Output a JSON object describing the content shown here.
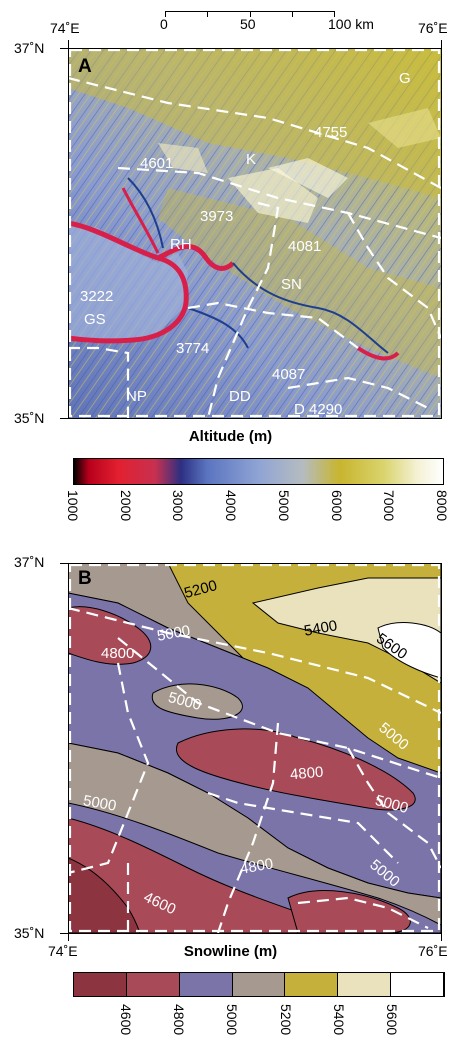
{
  "scalebar": {
    "t0": "0",
    "t50": "50",
    "t100": "100 km"
  },
  "panel_a": {
    "letter": "A",
    "lon_left": "74˚E",
    "lon_right": "76˚E",
    "lat_top": "37˚N",
    "lat_bottom": "35˚N",
    "labels": [
      "G",
      "4755",
      "K",
      "4601",
      "3973",
      "RH",
      "4081",
      "SN",
      "3222",
      "GS",
      "3774",
      "4087",
      "NP",
      "DD",
      "D 4290"
    ],
    "colorbar_title": "Altitude (m)",
    "colorbar_ticks": [
      "1000",
      "2000",
      "3000",
      "4000",
      "5000",
      "6000",
      "7000",
      "8000"
    ]
  },
  "panel_b": {
    "letter": "B",
    "lat_top": "37˚N",
    "lat_bottom": "35˚N",
    "lon_left": "74˚E",
    "lon_right": "76˚E",
    "contour_labels": [
      "5200",
      "5400",
      "5600",
      "5000",
      "4800",
      "5000",
      "5000",
      "4800",
      "5000",
      "5000",
      "5000",
      "4800",
      "4600",
      "5000"
    ],
    "colorbar_title": "Snowline (m)",
    "colorbar_ticks": [
      "4600",
      "4800",
      "5000",
      "5200",
      "5400",
      "5600"
    ],
    "colorbar_colors": [
      "#8c3540",
      "#a84a58",
      "#7b74a8",
      "#a6998f",
      "#c4b03a",
      "#e9e2bd",
      "#ffffff"
    ]
  }
}
